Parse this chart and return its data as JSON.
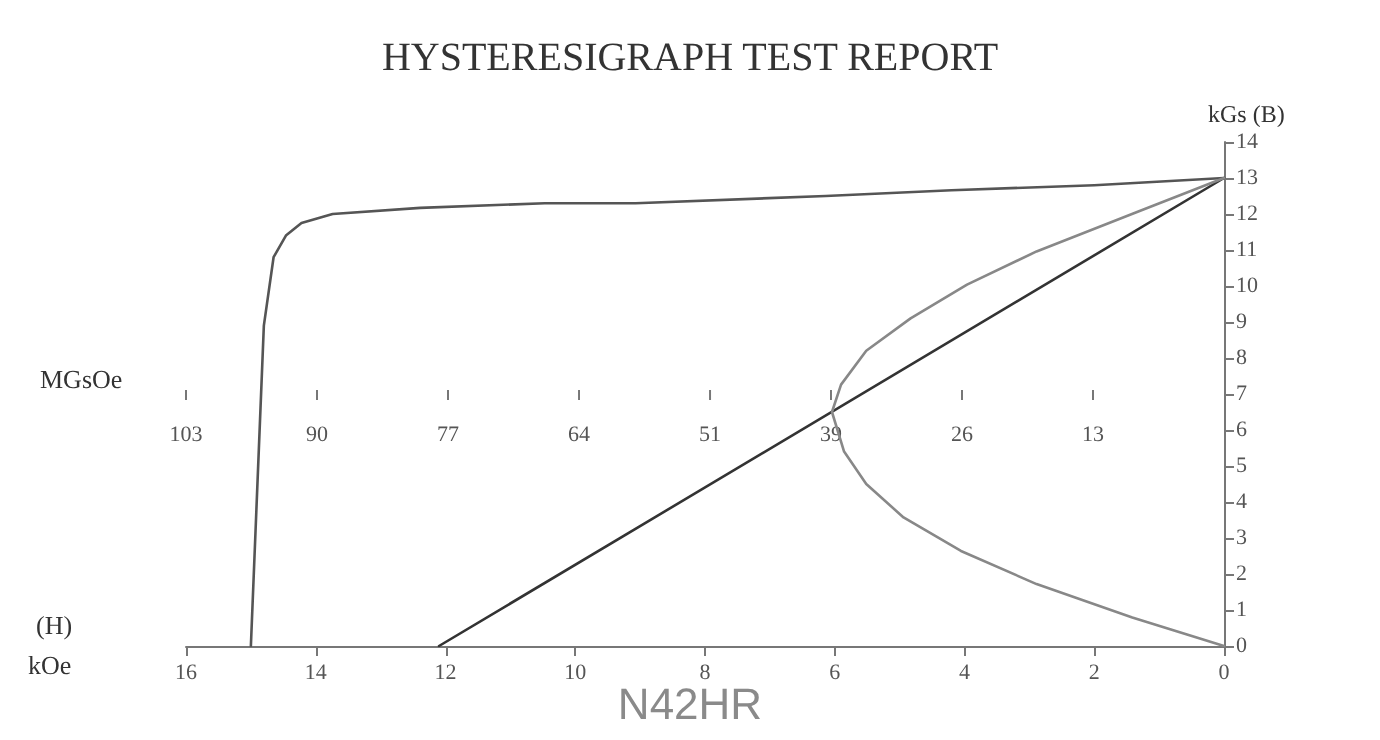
{
  "chart_data": {
    "type": "line",
    "title": "HYSTERESIGRAPH TEST REPORT",
    "xlabel": "kOe",
    "ylabel": "kGs (B)",
    "x2label": "MGsOe",
    "annotations": [
      "(H)",
      "N42HR"
    ],
    "xlim": [
      16,
      0
    ],
    "xticks": [
      16,
      14,
      12,
      10,
      8,
      6,
      4,
      2,
      0
    ],
    "x2lim": [
      103,
      0
    ],
    "x2ticks": [
      103,
      90,
      77,
      64,
      51,
      39,
      26,
      13
    ],
    "ylim": [
      0,
      14
    ],
    "yticks": [
      0,
      1,
      2,
      3,
      4,
      5,
      6,
      7,
      8,
      9,
      10,
      11,
      12,
      13,
      14
    ],
    "grid": false,
    "marker": "none",
    "line_style": "solid",
    "series": [
      {
        "color": "#555555",
        "x": [
          15.0,
          14.8,
          14.65,
          14.46,
          14.22,
          13.74,
          12.39,
          10.47,
          9.07,
          6.14,
          4.2,
          2,
          0
        ],
        "values": [
          0,
          8.9,
          10.8,
          11.4,
          11.75,
          12.0,
          12.17,
          12.3,
          12.3,
          12.5,
          12.66,
          12.8,
          13
        ]
      },
      {
        "color": "#333333",
        "x": [
          12.1,
          0
        ],
        "values": [
          0,
          13
        ]
      },
      {
        "color": "#888888",
        "axis": "x2",
        "x": [
          0,
          8.5,
          18.6,
          25.5,
          31.1,
          35.5,
          38,
          38.9,
          37.7,
          35.5,
          31.8,
          26.1,
          18.6,
          9.1,
          0
        ],
        "values": [
          13,
          12.07,
          10.96,
          10.04,
          9.1,
          8.2,
          7.26,
          6.5,
          5.4,
          4.5,
          3.57,
          2.64,
          1.72,
          0.79,
          0
        ]
      }
    ]
  }
}
